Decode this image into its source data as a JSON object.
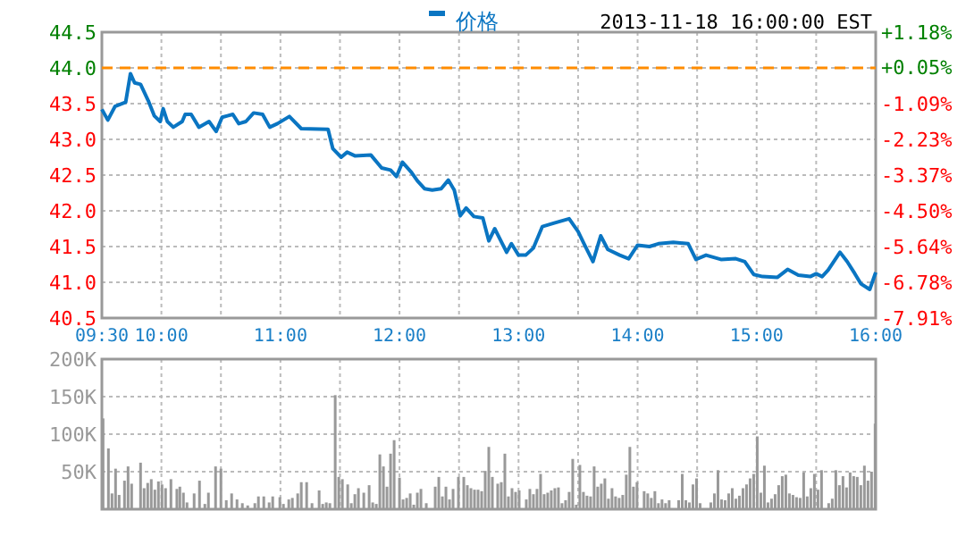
{
  "chart_data": [
    {
      "type": "line",
      "annotations": [
        "2013-11-18 16:00:00 EST"
      ],
      "legend": "top",
      "grid": true,
      "xlim": [
        9.5,
        16
      ],
      "xticks": [
        {
          "value": 9.5,
          "label": "09:30"
        },
        {
          "value": 10,
          "label": "10:00"
        },
        {
          "value": 10.5,
          "label": null
        },
        {
          "value": 11,
          "label": "11:00"
        },
        {
          "value": 11.5,
          "label": null
        },
        {
          "value": 12,
          "label": "12:00"
        },
        {
          "value": 12.5,
          "label": null
        },
        {
          "value": 13,
          "label": "13:00"
        },
        {
          "value": 13.5,
          "label": null
        },
        {
          "value": 14,
          "label": "14:00"
        },
        {
          "value": 14.5,
          "label": null
        },
        {
          "value": 15,
          "label": "15:00"
        },
        {
          "value": 15.5,
          "label": null
        },
        {
          "value": 16,
          "label": "16:00"
        }
      ],
      "ylim": [
        40.5,
        44.5
      ],
      "yticks": [
        {
          "value": 40.5,
          "label": "40.5"
        },
        {
          "value": 41,
          "label": "41.0"
        },
        {
          "value": 41.5,
          "label": "41.5"
        },
        {
          "value": 42,
          "label": "42.0"
        },
        {
          "value": 42.5,
          "label": "42.5"
        },
        {
          "value": 43,
          "label": "43.0"
        },
        {
          "value": 43.5,
          "label": "43.5"
        },
        {
          "value": 44,
          "label": "44.0"
        },
        {
          "value": 44.5,
          "label": "44.5"
        }
      ],
      "y2lim": [
        -7.91,
        1.18
      ],
      "y2ticks": [
        {
          "value": -7.91,
          "label": "-7.91%"
        },
        {
          "value": -6.78,
          "label": "-6.78%"
        },
        {
          "value": -5.64,
          "label": "-5.64%"
        },
        {
          "value": -4.5,
          "label": "-4.50%"
        },
        {
          "value": -3.37,
          "label": "-3.37%"
        },
        {
          "value": -2.23,
          "label": "-2.23%"
        },
        {
          "value": -1.09,
          "label": "-1.09%"
        },
        {
          "value": 0.05,
          "label": "+0.05%"
        },
        {
          "value": 1.18,
          "label": "+1.18%"
        }
      ],
      "ref_lines": [
        {
          "axis": "y",
          "value": 44.0,
          "color": "#ff8c00",
          "line_style": "dashed"
        }
      ],
      "series": [
        {
          "name": "价格",
          "color": "#0a75c2",
          "x": [
            9.5,
            9.55,
            9.61,
            9.7,
            9.74,
            9.775,
            9.825,
            9.89,
            9.94,
            9.99,
            10.015,
            10.05,
            10.1,
            10.175,
            10.2,
            10.25,
            10.315,
            10.4,
            10.46,
            10.51,
            10.6,
            10.65,
            10.71,
            10.775,
            10.85,
            10.91,
            10.975,
            11.075,
            11.175,
            11.4,
            11.44,
            11.51,
            11.56,
            11.625,
            11.76,
            11.85,
            11.925,
            11.975,
            12.025,
            12.1,
            12.15,
            12.21,
            12.275,
            12.35,
            12.41,
            12.46,
            12.51,
            12.56,
            12.625,
            12.7,
            12.75,
            12.8,
            12.9,
            12.94,
            13.0,
            13.06,
            13.125,
            13.2,
            13.3,
            13.425,
            13.5,
            13.55,
            13.625,
            13.69,
            13.75,
            13.85,
            13.925,
            14.0,
            14.1,
            14.175,
            14.3,
            14.425,
            14.49,
            14.575,
            14.7,
            14.825,
            14.9,
            14.975,
            15.05,
            15.175,
            15.26,
            15.35,
            15.45,
            15.5,
            15.55,
            15.6,
            15.7,
            15.76,
            15.825,
            15.875,
            15.95,
            16.0
          ],
          "values": [
            43.42,
            43.27,
            43.46,
            43.52,
            43.92,
            43.79,
            43.77,
            43.54,
            43.33,
            43.25,
            43.43,
            43.25,
            43.17,
            43.25,
            43.35,
            43.35,
            43.17,
            43.25,
            43.11,
            43.31,
            43.35,
            43.22,
            43.25,
            43.37,
            43.35,
            43.17,
            43.22,
            43.32,
            43.15,
            43.14,
            42.87,
            42.75,
            42.82,
            42.77,
            42.78,
            42.6,
            42.57,
            42.48,
            42.68,
            42.54,
            42.42,
            42.31,
            42.29,
            42.31,
            42.43,
            42.29,
            41.93,
            42.04,
            41.92,
            41.9,
            41.58,
            41.75,
            41.42,
            41.54,
            41.38,
            41.38,
            41.48,
            41.78,
            41.83,
            41.89,
            41.71,
            41.54,
            41.29,
            41.65,
            41.46,
            41.38,
            41.33,
            41.52,
            41.5,
            41.54,
            41.56,
            41.54,
            41.32,
            41.38,
            41.32,
            41.33,
            41.29,
            41.11,
            41.08,
            41.07,
            41.18,
            41.1,
            41.08,
            41.12,
            41.08,
            41.17,
            41.42,
            41.29,
            41.12,
            40.98,
            40.9,
            41.14
          ]
        }
      ]
    },
    {
      "type": "bar",
      "grid": true,
      "tick_labels": "y",
      "xlim": [
        9.5,
        16
      ],
      "xticks": [
        {
          "value": 9.5,
          "label": null
        },
        {
          "value": 10,
          "label": null
        },
        {
          "value": 10.5,
          "label": null
        },
        {
          "value": 11,
          "label": null
        },
        {
          "value": 11.5,
          "label": null
        },
        {
          "value": 12,
          "label": null
        },
        {
          "value": 12.5,
          "label": null
        },
        {
          "value": 13,
          "label": null
        },
        {
          "value": 13.5,
          "label": null
        },
        {
          "value": 14,
          "label": null
        },
        {
          "value": 14.5,
          "label": null
        },
        {
          "value": 15,
          "label": null
        },
        {
          "value": 15.5,
          "label": null
        },
        {
          "value": 16,
          "label": null
        }
      ],
      "ylim": [
        0,
        200
      ],
      "yticks": [
        {
          "value": 50,
          "label": "50K"
        },
        {
          "value": 100,
          "label": "100K"
        },
        {
          "value": 150,
          "label": "150K"
        },
        {
          "value": 200,
          "label": "200K"
        }
      ],
      "series": [
        {
          "color": "#999999",
          "x": [
            9.51,
            9.555,
            9.585,
            9.615,
            9.645,
            9.69,
            9.72,
            9.75,
            9.825,
            9.855,
            9.885,
            9.915,
            9.945,
            9.975,
            10.005,
            10.035,
            10.08,
            10.13,
            10.155,
            10.185,
            10.215,
            10.275,
            10.32,
            10.365,
            10.395,
            10.455,
            10.5,
            10.545,
            10.59,
            10.635,
            10.68,
            10.725,
            10.785,
            10.815,
            10.86,
            10.905,
            10.935,
            10.995,
            11.025,
            11.07,
            11.1,
            11.145,
            11.175,
            11.22,
            11.265,
            11.325,
            11.355,
            11.385,
            11.415,
            11.46,
            11.49,
            11.52,
            11.565,
            11.595,
            11.625,
            11.655,
            11.7,
            11.745,
            11.775,
            11.805,
            11.835,
            11.865,
            11.895,
            11.925,
            11.955,
            12.0,
            12.03,
            12.06,
            12.09,
            12.12,
            12.15,
            12.18,
            12.225,
            12.3,
            12.33,
            12.36,
            12.39,
            12.42,
            12.45,
            12.495,
            12.54,
            12.57,
            12.6,
            12.63,
            12.66,
            12.69,
            12.72,
            12.75,
            12.78,
            12.825,
            12.855,
            12.885,
            12.915,
            12.945,
            12.975,
            13.005,
            13.065,
            13.095,
            13.125,
            13.155,
            13.185,
            13.215,
            13.245,
            13.275,
            13.305,
            13.335,
            13.365,
            13.395,
            13.425,
            13.455,
            13.485,
            13.515,
            13.545,
            13.575,
            13.605,
            13.635,
            13.665,
            13.695,
            13.725,
            13.755,
            13.785,
            13.815,
            13.845,
            13.875,
            13.905,
            13.935,
            13.965,
            13.995,
            14.025,
            14.055,
            14.085,
            14.115,
            14.145,
            14.175,
            14.205,
            14.235,
            14.265,
            14.345,
            14.375,
            14.405,
            14.435,
            14.465,
            14.495,
            14.525,
            14.555,
            14.615,
            14.645,
            14.675,
            14.705,
            14.735,
            14.765,
            14.795,
            14.825,
            14.855,
            14.885,
            14.915,
            14.945,
            14.975,
            15.005,
            15.035,
            15.065,
            15.095,
            15.125,
            15.155,
            15.185,
            15.215,
            15.245,
            15.275,
            15.305,
            15.335,
            15.365,
            15.395,
            15.425,
            15.455,
            15.485,
            15.515,
            15.545,
            15.575,
            15.605,
            15.635,
            15.665,
            15.695,
            15.725,
            15.755,
            15.785,
            15.815,
            15.845,
            15.875,
            15.905,
            15.935,
            15.965,
            15.995
          ],
          "values": [
            121,
            81,
            21,
            54,
            19,
            38,
            57,
            34,
            62,
            28,
            35,
            40,
            26,
            37,
            33,
            28,
            40,
            27,
            30,
            22,
            9,
            21,
            38,
            7,
            22,
            57,
            54,
            12,
            21,
            13,
            8,
            5,
            8,
            17,
            17,
            9,
            17,
            16,
            7,
            13,
            15,
            21,
            36,
            36,
            8,
            25,
            7,
            9,
            8,
            152,
            43,
            40,
            33,
            8,
            20,
            28,
            22,
            32,
            9,
            7,
            73,
            57,
            30,
            74,
            92,
            42,
            13,
            15,
            21,
            6,
            22,
            27,
            8,
            30,
            43,
            17,
            30,
            13,
            27,
            43,
            43,
            32,
            28,
            26,
            26,
            24,
            51,
            83,
            43,
            34,
            36,
            74,
            17,
            28,
            23,
            25,
            13,
            27,
            20,
            27,
            47,
            20,
            22,
            25,
            28,
            29,
            8,
            12,
            23,
            67,
            6,
            59,
            23,
            18,
            17,
            57,
            30,
            34,
            41,
            14,
            28,
            17,
            15,
            19,
            46,
            83,
            30,
            36,
            null,
            24,
            21,
            15,
            24,
            8,
            13,
            8,
            12,
            12,
            47,
            12,
            9,
            33,
            41,
            8,
            null,
            9,
            21,
            52,
            13,
            12,
            21,
            28,
            14,
            18,
            28,
            33,
            41,
            47,
            97,
            22,
            58,
            9,
            14,
            20,
            32,
            44,
            46,
            21,
            19,
            16,
            15,
            49,
            17,
            28,
            47,
            26,
            52,
            null,
            8,
            14,
            52,
            32,
            44,
            29,
            49,
            44,
            43,
            32,
            58,
            38,
            50,
            114
          ]
        }
      ]
    }
  ]
}
